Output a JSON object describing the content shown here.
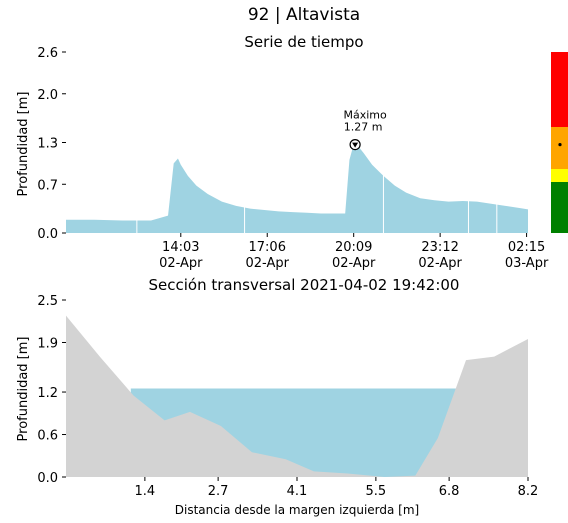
{
  "header": {
    "title": "92 | Altavista"
  },
  "colors": {
    "water": "#9fd3e2",
    "ground": "#d3d3d3",
    "risk_bar": [
      "#ff0000",
      "#ffa500",
      "#ffff00",
      "#008000"
    ]
  },
  "chart_data": [
    {
      "type": "area",
      "title": "Serie de tiempo",
      "xlabel": "",
      "ylabel": "Profundidad [m]",
      "ylim": [
        0,
        2.6
      ],
      "yticks": [
        0.0,
        0.7,
        1.3,
        2.0,
        2.6
      ],
      "ytick_labels": [
        "0.0",
        "0.7",
        "1.3",
        "2.0",
        "2.6"
      ],
      "xlim_hours": [
        0,
        16.3
      ],
      "xticks": [
        {
          "time": "14:03",
          "date": "02-Apr"
        },
        {
          "time": "17:06",
          "date": "02-Apr"
        },
        {
          "time": "20:09",
          "date": "02-Apr"
        },
        {
          "time": "23:12",
          "date": "02-Apr"
        },
        {
          "time": "02:15",
          "date": "03-Apr"
        }
      ],
      "xtick_hours": [
        4.05,
        7.1,
        10.15,
        13.2,
        16.25
      ],
      "series": [
        {
          "hours": [
            0.0,
            1.0,
            2.0,
            3.0,
            3.6,
            3.8,
            3.95,
            4.05,
            4.3,
            4.6,
            5.0,
            5.5,
            6.0,
            6.5,
            7.0,
            7.5,
            8.0,
            8.5,
            9.0,
            9.5,
            9.85,
            10.0,
            10.1,
            10.2,
            10.3,
            10.5,
            10.8,
            11.2,
            11.6,
            12.0,
            12.5,
            13.0,
            13.5,
            14.0,
            14.5,
            15.0,
            15.5,
            16.0,
            16.3
          ],
          "values": [
            0.19,
            0.19,
            0.18,
            0.18,
            0.25,
            1.0,
            1.07,
            0.98,
            0.82,
            0.68,
            0.56,
            0.45,
            0.39,
            0.35,
            0.33,
            0.31,
            0.3,
            0.29,
            0.28,
            0.28,
            0.28,
            1.05,
            1.2,
            1.27,
            1.25,
            1.15,
            0.98,
            0.82,
            0.68,
            0.58,
            0.5,
            0.47,
            0.45,
            0.46,
            0.45,
            0.42,
            0.39,
            0.36,
            0.34
          ]
        }
      ],
      "annotations": [
        {
          "label": "Máximo",
          "value_label": "1.27 m",
          "hour": 10.2,
          "value": 1.27
        }
      ],
      "risk_indicator_value": 1.27
    },
    {
      "type": "area",
      "title": "Sección transversal 2021-04-02 19:42:00",
      "xlabel": "Distancia desde la margen izquierda [m]",
      "ylabel": "Profundidad [m]",
      "ylim": [
        0,
        2.5
      ],
      "xlim": [
        0,
        8.2
      ],
      "yticks": [
        0.0,
        0.6,
        1.2,
        1.9,
        2.5
      ],
      "ytick_labels": [
        "0.0",
        "0.6",
        "1.2",
        "1.9",
        "2.5"
      ],
      "xticks": [
        1.4,
        2.7,
        4.1,
        5.5,
        6.8,
        8.2
      ],
      "xtick_labels": [
        "1.4",
        "2.7",
        "4.1",
        "5.5",
        "6.8",
        "8.2"
      ],
      "water_level": 1.25,
      "water_x": [
        1.15,
        6.98
      ],
      "series": [
        {
          "name_hidden": "",
          "x": [
            0.0,
            0.6,
            1.2,
            1.75,
            2.2,
            2.75,
            3.3,
            3.9,
            4.4,
            5.0,
            5.65,
            6.2,
            6.6,
            7.1,
            7.6,
            8.2
          ],
          "values": [
            2.28,
            1.7,
            1.15,
            0.8,
            0.92,
            0.72,
            0.35,
            0.25,
            0.08,
            0.05,
            0.0,
            0.02,
            0.55,
            1.65,
            1.7,
            1.95
          ]
        }
      ]
    }
  ]
}
